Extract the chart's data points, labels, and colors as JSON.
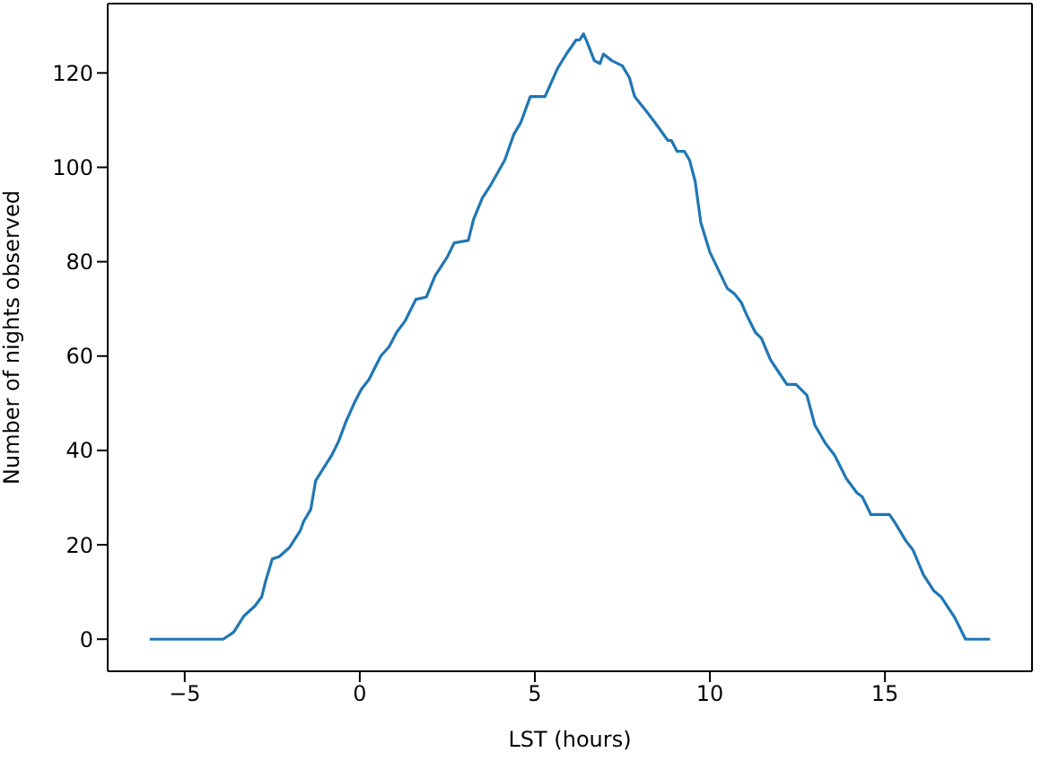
{
  "chart_data": {
    "type": "line",
    "xlabel": "LST (hours)",
    "ylabel": "Number of nights observed",
    "xlim": [
      -7.2,
      19.2
    ],
    "ylim": [
      -6.8,
      134.7
    ],
    "xticks": [
      -5,
      0,
      5,
      10,
      15
    ],
    "yticks": [
      0,
      20,
      40,
      60,
      80,
      100,
      120
    ],
    "marker": "none",
    "line_style": "solid",
    "series": [
      {
        "color": "#1f77b4",
        "x": [
          -6,
          -3.9,
          -3.6,
          -3.3,
          -3,
          -2.8,
          -2.7,
          -2.5,
          -2.3,
          -2,
          -1.7,
          -1.6,
          -1.4,
          -1.26,
          -1.1,
          -0.8,
          -0.6,
          -0.4,
          -0.16,
          0.05,
          0.26,
          0.6,
          0.84,
          1.05,
          1.3,
          1.6,
          1.9,
          2.15,
          2.5,
          2.7,
          3.1,
          3.25,
          3.5,
          3.72,
          4.14,
          4.4,
          4.6,
          4.87,
          5.29,
          5.65,
          5.9,
          6.18,
          6.28,
          6.39,
          6.5,
          6.7,
          6.86,
          6.96,
          7.2,
          7.5,
          7.7,
          7.85,
          8.17,
          8.43,
          8.8,
          8.9,
          9.06,
          9.27,
          9.42,
          9.58,
          9.74,
          10,
          10.26,
          10.5,
          10.7,
          10.9,
          11.05,
          11.3,
          11.47,
          11.73,
          12,
          12.2,
          12.46,
          12.77,
          13,
          13.3,
          13.56,
          13.9,
          14.2,
          14.35,
          14.6,
          15.13,
          15.3,
          15.6,
          15.8,
          16.1,
          16.4,
          16.6,
          17,
          17.3,
          18
        ],
        "values": [
          0,
          0,
          1.5,
          5,
          7,
          9,
          12,
          17,
          17.5,
          19.5,
          23,
          25,
          27.5,
          33.6,
          35.5,
          39,
          42,
          46,
          50,
          53,
          55,
          60,
          62,
          65,
          67.5,
          72,
          72.5,
          77,
          81,
          84,
          84.5,
          89,
          93.5,
          96,
          101.5,
          107,
          109.5,
          115,
          115,
          121,
          124,
          127,
          127,
          128.3,
          126.4,
          122.6,
          122,
          124,
          122.6,
          121.5,
          119,
          115,
          112,
          109.5,
          105.7,
          105.7,
          103.4,
          103.4,
          101.5,
          97,
          88.3,
          82,
          78,
          74.3,
          73.2,
          71.3,
          68.7,
          65,
          63.8,
          59.2,
          56.2,
          54,
          54,
          51.7,
          45.3,
          41.5,
          39,
          34,
          31,
          30.2,
          26.4,
          26.4,
          24.5,
          20.8,
          18.9,
          13.6,
          10.2,
          9,
          4.5,
          0,
          0
        ]
      }
    ]
  }
}
